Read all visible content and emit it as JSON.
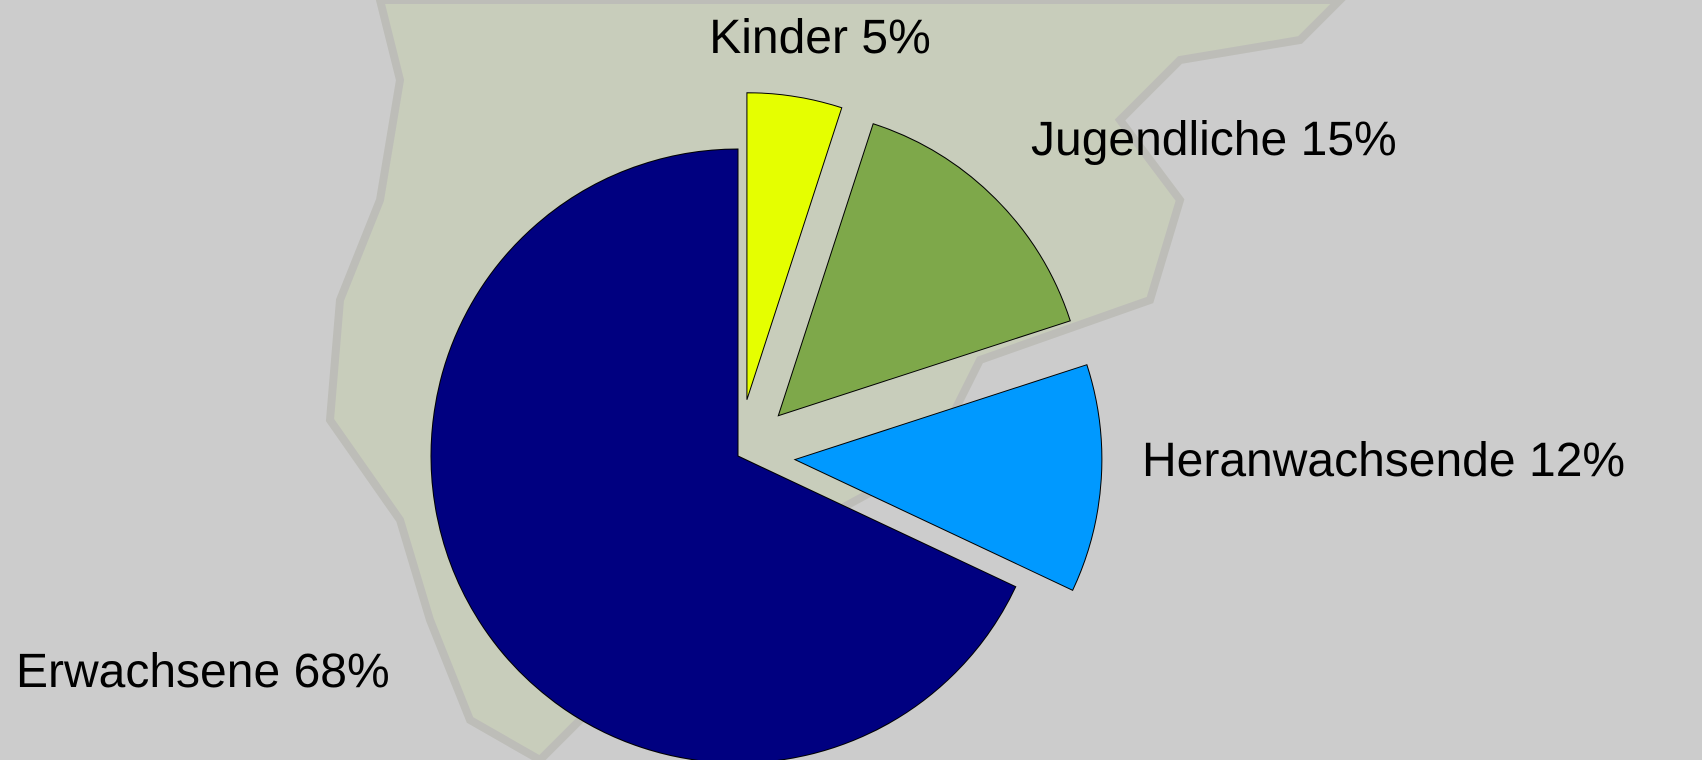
{
  "chart_data": {
    "type": "pie",
    "categories": [
      "Kinder",
      "Jugendliche",
      "Heranwachsende",
      "Erwachsene"
    ],
    "values": [
      5,
      15,
      12,
      68
    ],
    "value_labels": [
      "5%",
      "15%",
      "12%",
      "68%"
    ],
    "colors": [
      "#e5ff00",
      "#7ea84a",
      "#0099ff",
      "#000080"
    ]
  }
}
